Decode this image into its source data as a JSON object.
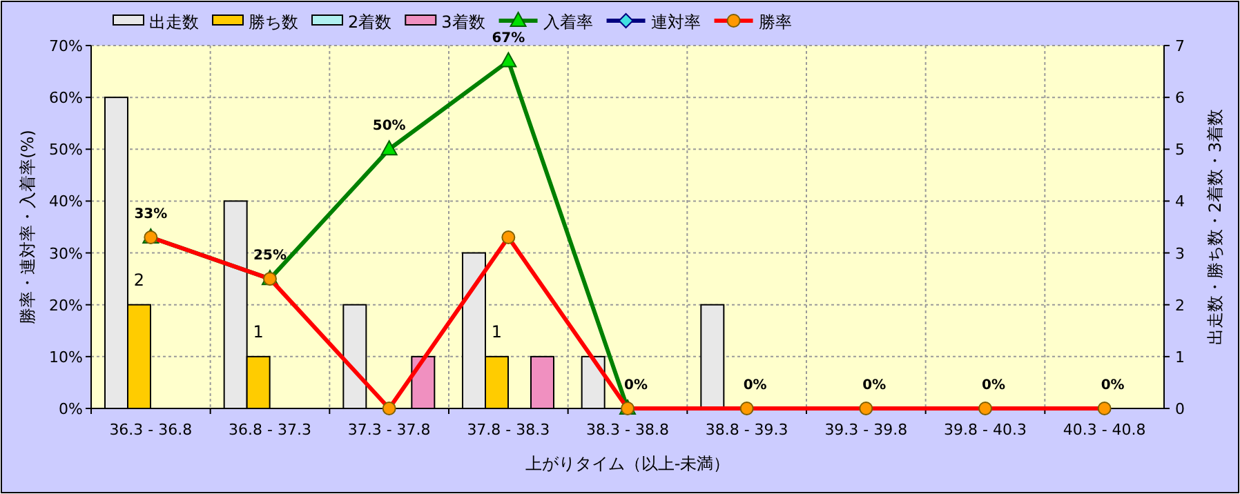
{
  "chart_data": {
    "type": "bar",
    "xlabel": "上がりタイム（以上-未満）",
    "ylabel": "勝率・連対率・入着率(%)",
    "y2label": "出走数・勝ち数・2着数・3着数",
    "categories": [
      "36.3 - 36.8",
      "36.8 - 37.3",
      "37.3 - 37.8",
      "37.8 - 38.3",
      "38.3 - 38.8",
      "38.8 - 39.3",
      "39.3 - 39.8",
      "39.8 - 40.3",
      "40.3 - 40.8"
    ],
    "series": [
      {
        "name": "出走数",
        "axis": "y2",
        "color": "#e8e8e8",
        "values": [
          6,
          4,
          2,
          3,
          1,
          2,
          0,
          0,
          0
        ]
      },
      {
        "name": "勝ち数",
        "axis": "y2",
        "color": "#ffcc00",
        "values": [
          2,
          1,
          0,
          1,
          0,
          0,
          0,
          0,
          0
        ],
        "value_labels": [
          "2",
          "1",
          null,
          "1",
          null,
          null,
          null,
          null,
          null
        ]
      },
      {
        "name": "2着数",
        "axis": "y2",
        "color": "#b0f0f0",
        "values": [
          0,
          0,
          0,
          0,
          0,
          0,
          0,
          0,
          0
        ]
      },
      {
        "name": "3着数",
        "axis": "y2",
        "color": "#f090c0",
        "values": [
          0,
          0,
          1,
          1,
          0,
          0,
          0,
          0,
          0
        ]
      },
      {
        "name": "入着率",
        "type": "line",
        "color": "#008000",
        "marker": "triangle",
        "values": [
          33,
          25,
          50,
          67,
          0,
          null,
          null,
          null,
          null
        ],
        "value_labels": [
          null,
          null,
          "50%",
          "67%",
          null,
          null,
          null,
          null,
          null
        ]
      },
      {
        "name": "連対率",
        "type": "line",
        "color": "#000080",
        "marker": "diamond",
        "values": [
          null,
          null,
          null,
          null,
          null,
          null,
          null,
          null,
          null
        ]
      },
      {
        "name": "勝率",
        "type": "line",
        "color": "#ff0000",
        "marker": "circle",
        "values": [
          33,
          25,
          0,
          33,
          0,
          0,
          0,
          0,
          0
        ],
        "value_labels": [
          "33%",
          "25%",
          null,
          null,
          "0%",
          "0%",
          "0%",
          "0%",
          "0%"
        ]
      }
    ],
    "ylim": [
      0,
      70
    ],
    "yticks": [
      {
        "value": 0,
        "label": "0%"
      },
      {
        "value": 10,
        "label": "10%"
      },
      {
        "value": 20,
        "label": "20%"
      },
      {
        "value": 30,
        "label": "30%"
      },
      {
        "value": 40,
        "label": "40%"
      },
      {
        "value": 50,
        "label": "50%"
      },
      {
        "value": 60,
        "label": "60%"
      },
      {
        "value": 70,
        "label": "70%"
      }
    ],
    "y2lim": [
      0,
      7
    ],
    "y2ticks": [
      0,
      1,
      2,
      3,
      4,
      5,
      6,
      7
    ],
    "grid": true,
    "legend": "top"
  }
}
